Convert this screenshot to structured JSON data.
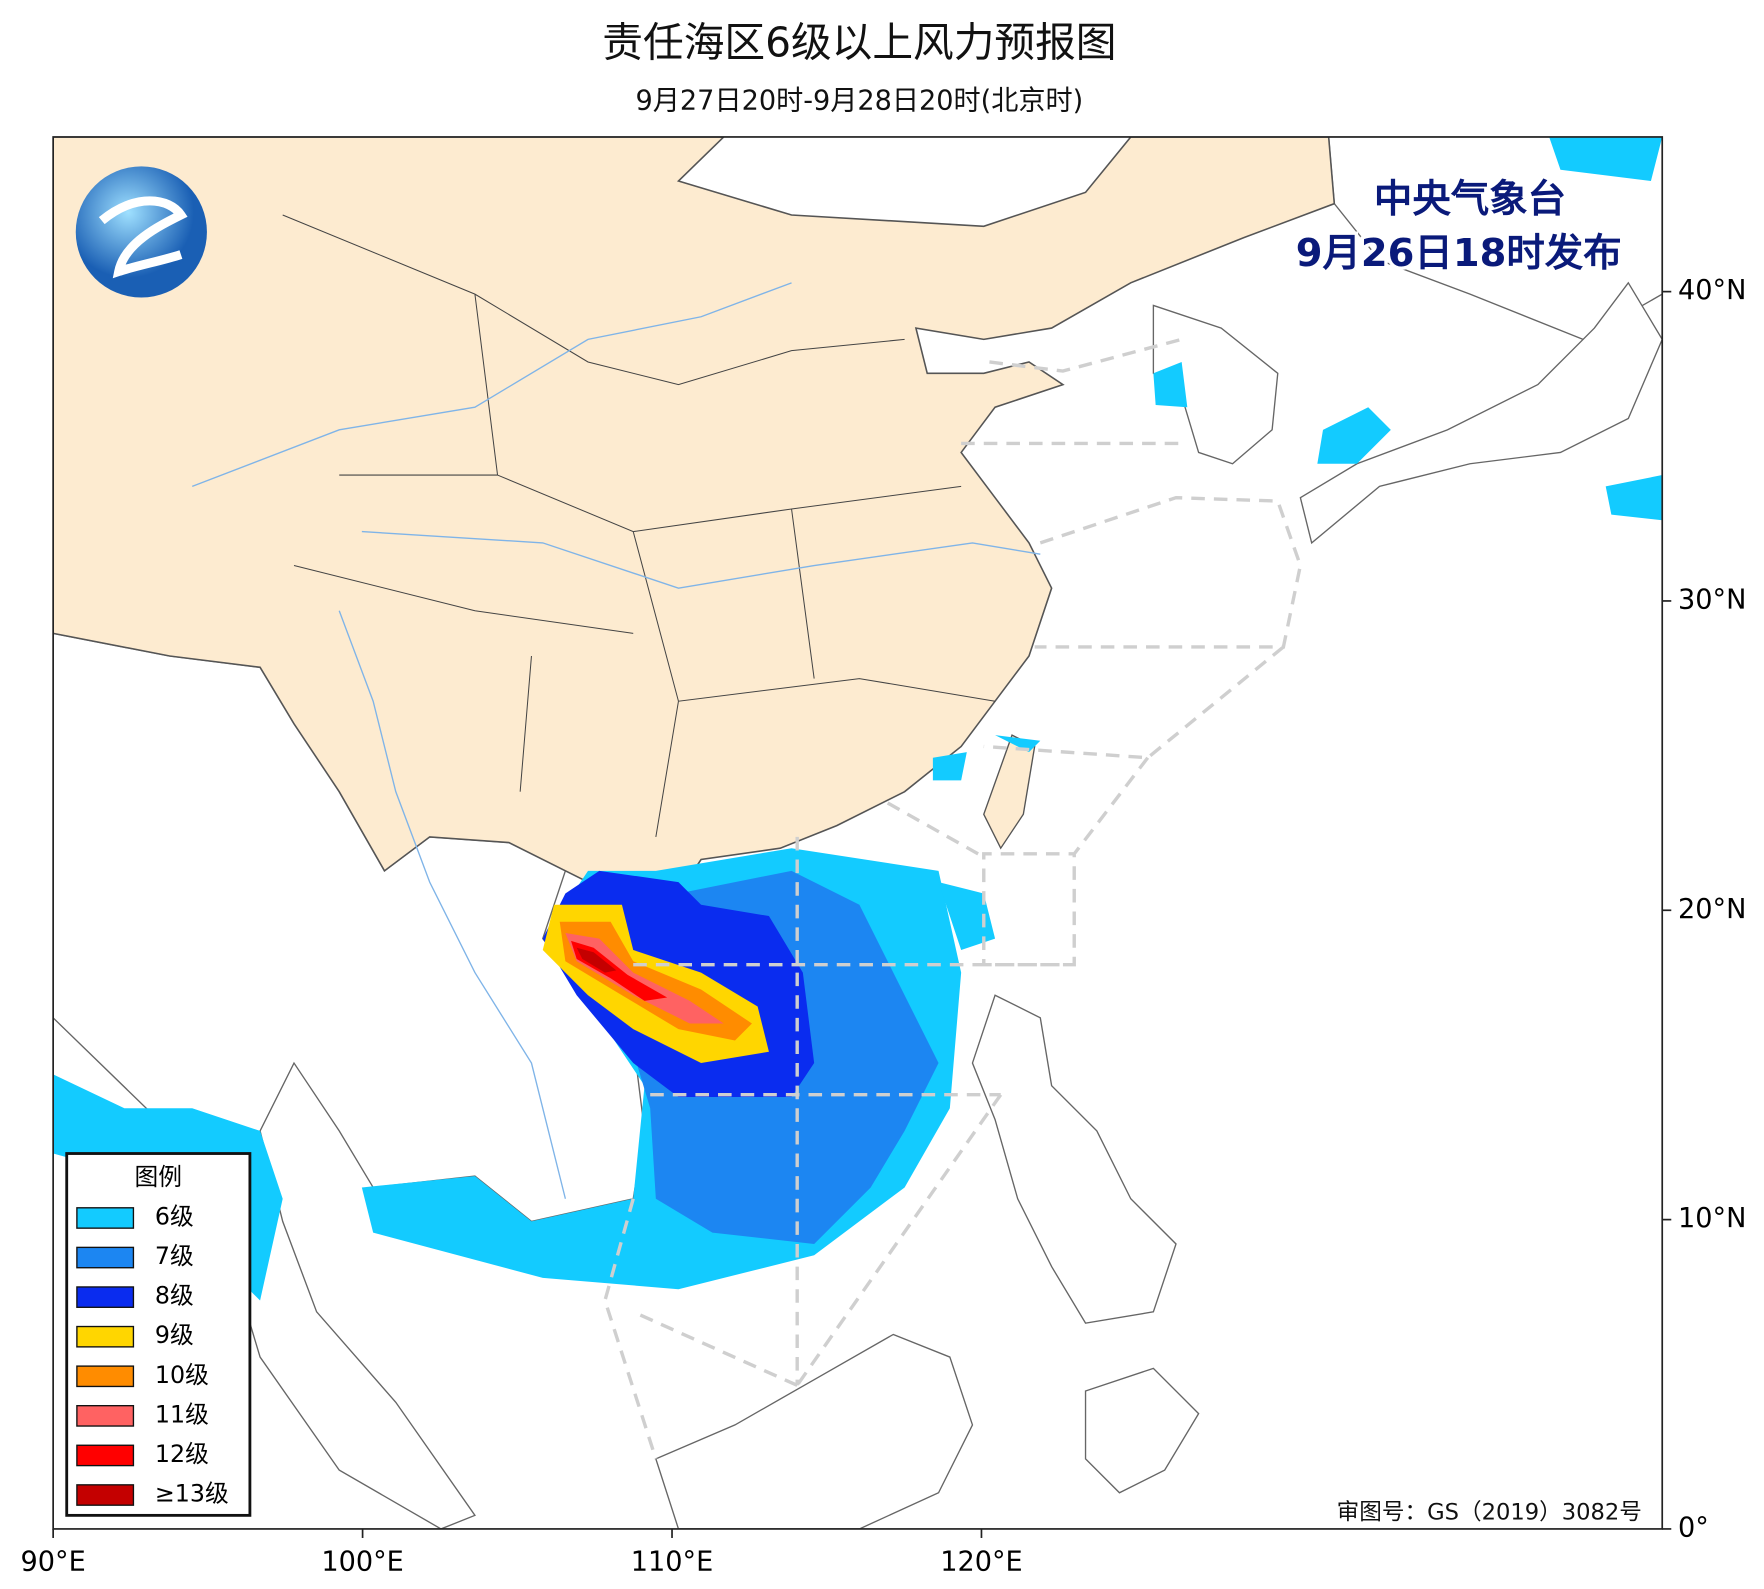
{
  "header": {
    "title": "责任海区6级以上风力预报图",
    "subtitle": "9月27日20时-9月28日20时(北京时)"
  },
  "map": {
    "lonlim": [
      90,
      142
    ],
    "latlim": [
      0,
      45
    ],
    "lon_ticks": [
      {
        "value": 90,
        "label": "90°E"
      },
      {
        "value": 100,
        "label": "100°E"
      },
      {
        "value": 110,
        "label": "110°E"
      },
      {
        "value": 120,
        "label": "120°E"
      }
    ],
    "lat_ticks": [
      {
        "value": 0,
        "label": "0°"
      },
      {
        "value": 10,
        "label": "10°N"
      },
      {
        "value": 20,
        "label": "20°N"
      },
      {
        "value": 30,
        "label": "30°N"
      },
      {
        "value": 40,
        "label": "40°N"
      }
    ]
  },
  "issuer": {
    "agency": "中央气象台",
    "issued": "9月26日18时发布"
  },
  "legend": {
    "title": "图例",
    "items": [
      {
        "label": "6级",
        "color": "#13cbff"
      },
      {
        "label": "7级",
        "color": "#1c86f2"
      },
      {
        "label": "8级",
        "color": "#0a2cef"
      },
      {
        "label": "9级",
        "color": "#ffd600"
      },
      {
        "label": "10级",
        "color": "#ff8c00"
      },
      {
        "label": "11级",
        "color": "#ff6262"
      },
      {
        "label": "12级",
        "color": "#ff0000"
      },
      {
        "label": "≥13级",
        "color": "#c40000"
      }
    ]
  },
  "approval": "审图号：GS（2019）3082号"
}
